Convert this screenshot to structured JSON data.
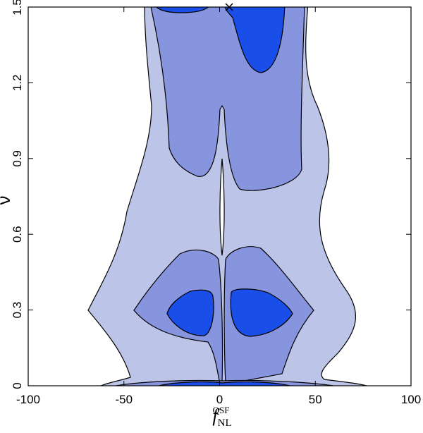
{
  "chart_data": {
    "type": "contour",
    "x_label": {
      "main": "f",
      "sub": "NL",
      "sup": "QSF"
    },
    "y_label": "ν",
    "xlim": [
      -100,
      100
    ],
    "xticks": [
      -100,
      -50,
      0,
      50,
      100
    ],
    "ylim": [
      0,
      1.5
    ],
    "yticks": [
      0,
      0.3,
      0.6,
      0.9,
      1.2,
      1.5
    ],
    "marker": {
      "x": 5,
      "y": 1.5
    },
    "colors": [
      "#bcc4e8",
      "#8794de",
      "#1a4ee8"
    ]
  }
}
